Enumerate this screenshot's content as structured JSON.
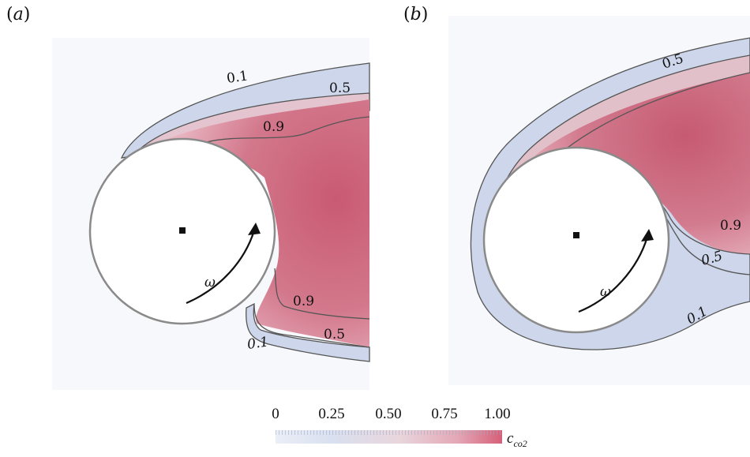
{
  "panels": {
    "a": {
      "label_open": "(",
      "label_letter": "a",
      "label_close": ")",
      "contours": [
        "0.1",
        "0.5",
        "0.9",
        "0.9",
        "0.5",
        "0.1"
      ],
      "rotation_symbol": "ω"
    },
    "b": {
      "label_open": "(",
      "label_letter": "b",
      "label_close": ")",
      "contours": [
        "0.5",
        "0.9",
        "0.5",
        "0.1"
      ],
      "rotation_symbol": "ω"
    }
  },
  "colorbar": {
    "ticks": [
      "0",
      "0.25",
      "0.50",
      "0.75",
      "1.00"
    ],
    "variable": "c",
    "variable_sub": "co2",
    "colors": {
      "low": "#eaeef7",
      "mid": "#e9d5dc",
      "high": "#d65f78"
    }
  }
}
